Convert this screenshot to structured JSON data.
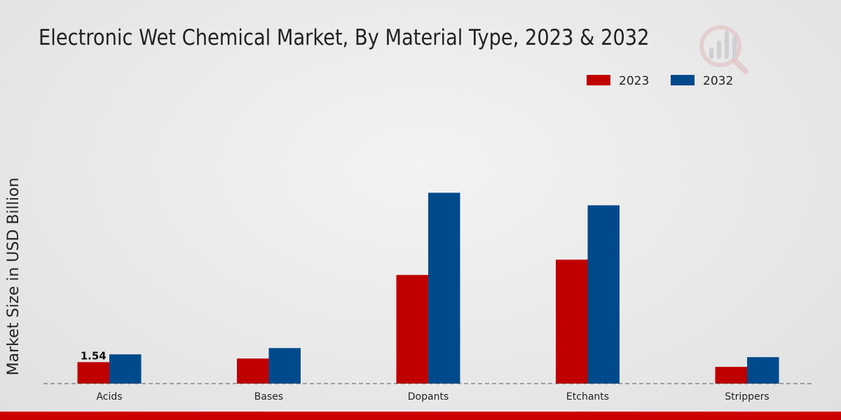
{
  "colors": {
    "series_2023": "#c00000",
    "series_2032": "#004a8c",
    "bottom_bar": "#cc0000",
    "axis": "#555555",
    "logo_mark": "#d9a3a6"
  },
  "chart_data": {
    "type": "bar",
    "title": "Electronic Wet Chemical Market, By Material Type, 2023 & 2032",
    "xlabel": "",
    "ylabel": "Market Size in USD Billion",
    "categories": [
      "Acids",
      "Bases",
      "Dopants",
      "Etchants",
      "Strippers"
    ],
    "series": [
      {
        "name": "2023",
        "values": [
          1.54,
          1.8,
          7.8,
          8.9,
          1.2
        ]
      },
      {
        "name": "2032",
        "values": [
          2.1,
          2.55,
          13.7,
          12.8,
          1.9
        ]
      }
    ],
    "data_labels": [
      {
        "series": "2023",
        "category": "Acids",
        "text": "1.54"
      }
    ],
    "ylim": [
      0,
      20
    ],
    "grid": false,
    "legend_position": "top-right"
  }
}
